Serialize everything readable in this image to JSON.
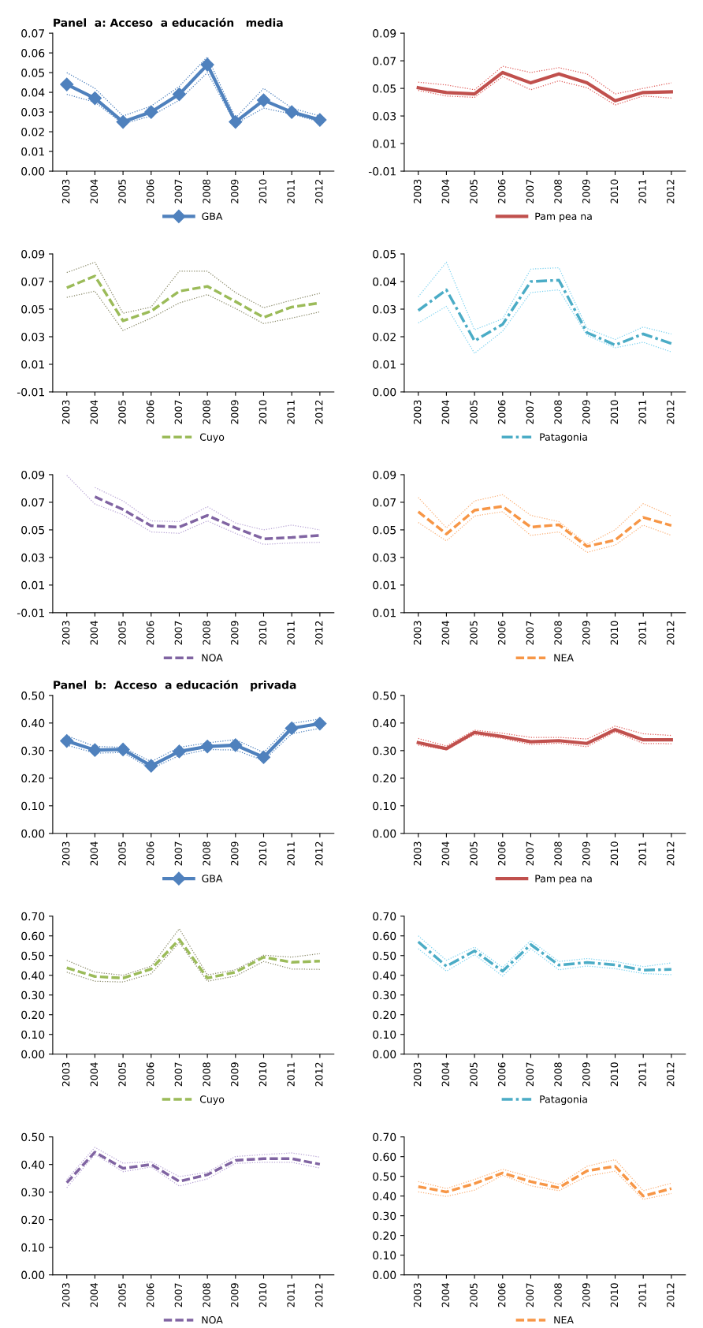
{
  "chart_data": [
    {
      "type": "line",
      "title": "Panel  a: Acceso  a educación   media",
      "categories": [
        "2003",
        "2004",
        "2005",
        "2006",
        "2007",
        "2008",
        "2009",
        "2010",
        "2011",
        "2012"
      ],
      "ylim": [
        0,
        0.07
      ],
      "yticks": [
        {
          "value": 0,
          "label": "0.00"
        },
        0.01,
        0.02,
        0.03,
        0.04,
        0.05,
        0.06,
        0.07
      ],
      "legend": "bottom",
      "marker": "diamond",
      "line_style": "solid",
      "series": [
        {
          "color": "#4f81bd",
          "line_style": "dotted",
          "marker": "none",
          "values": [
            0.05,
            0.042,
            0.028,
            0.033,
            0.043,
            0.058,
            0.027,
            0.042,
            0.032,
            0.028
          ]
        },
        {
          "color": "#4f81bd",
          "line_style": "dotted",
          "marker": "none",
          "values": [
            0.039,
            0.035,
            0.024,
            0.028,
            0.036,
            0.05,
            0.024,
            0.032,
            0.029,
            0.025
          ]
        },
        {
          "name": "GBA",
          "color": "#4f81bd",
          "values": [
            0.044,
            0.037,
            0.025,
            0.03,
            0.039,
            0.054,
            0.025,
            0.036,
            0.03,
            0.026
          ]
        }
      ]
    },
    {
      "type": "line",
      "categories": [
        "2003",
        "2004",
        "2005",
        "2006",
        "2007",
        "2008",
        "2009",
        "2010",
        "2011",
        "2012"
      ],
      "ylim": [
        -0.01,
        0.09
      ],
      "yticks": [
        -0.01,
        0.01,
        0.03,
        0.05,
        0.07,
        0.09
      ],
      "legend": "bottom",
      "line_style": "solid",
      "series": [
        {
          "color": "#e0605d",
          "line_style": "dotted",
          "values": [
            0.0545,
            0.0525,
            0.049,
            0.066,
            0.0615,
            0.065,
            0.0605,
            0.046,
            0.05,
            0.054
          ]
        },
        {
          "color": "#e0605d",
          "line_style": "dotted",
          "values": [
            0.0485,
            0.0445,
            0.0435,
            0.0585,
            0.049,
            0.0555,
            0.0505,
            0.038,
            0.0445,
            0.043
          ]
        },
        {
          "name": "Pam pea na",
          "color": "#c0504d",
          "values": [
            0.0505,
            0.047,
            0.046,
            0.0615,
            0.054,
            0.0605,
            0.054,
            0.041,
            0.047,
            0.0475
          ]
        }
      ]
    },
    {
      "type": "line",
      "categories": [
        "2003",
        "2004",
        "2005",
        "2006",
        "2007",
        "2008",
        "2009",
        "2010",
        "2011",
        "2012"
      ],
      "ylim": [
        -0.01,
        0.09
      ],
      "yticks": [
        -0.01,
        0.01,
        0.03,
        0.05,
        0.07,
        0.09
      ],
      "legend": "bottom",
      "line_style": "dashed",
      "series": [
        {
          "color": "#8a8a6a",
          "line_style": "dotted",
          "values": [
            0.0765,
            0.084,
            0.047,
            0.0515,
            0.0775,
            0.0775,
            0.062,
            0.051,
            0.0565,
            0.0615
          ]
        },
        {
          "color": "#8a8a6a",
          "line_style": "dotted",
          "values": [
            0.0585,
            0.063,
            0.0345,
            0.0435,
            0.0545,
            0.0605,
            0.0505,
            0.0395,
            0.0435,
            0.048
          ]
        },
        {
          "name": "Cuyo",
          "color": "#9bbb59",
          "values": [
            0.0655,
            0.074,
            0.0415,
            0.0485,
            0.063,
            0.0665,
            0.0555,
            0.044,
            0.0515,
            0.0545
          ]
        }
      ]
    },
    {
      "type": "line",
      "categories": [
        "2003",
        "2004",
        "2005",
        "2006",
        "2007",
        "2008",
        "2009",
        "2010",
        "2011",
        "2012"
      ],
      "ylim": [
        0,
        0.05
      ],
      "yticks": [
        {
          "value": 0,
          "label": "0.00"
        },
        0.01,
        0.02,
        0.03,
        0.04,
        0.05
      ],
      "legend": "bottom",
      "line_style": "dashdot",
      "series": [
        {
          "color": "#7fd3f0",
          "line_style": "dotted",
          "values": [
            0.0345,
            0.047,
            0.0225,
            0.0265,
            0.0445,
            0.045,
            0.023,
            0.019,
            0.0235,
            0.021
          ]
        },
        {
          "color": "#7fd3f0",
          "line_style": "dotted",
          "values": [
            0.025,
            0.031,
            0.014,
            0.022,
            0.036,
            0.037,
            0.0205,
            0.016,
            0.018,
            0.0145
          ]
        },
        {
          "name": "Patagonia",
          "color": "#4bacc6",
          "values": [
            0.0295,
            0.037,
            0.0185,
            0.0245,
            0.04,
            0.0405,
            0.0215,
            0.017,
            0.021,
            0.0175
          ]
        }
      ]
    },
    {
      "type": "line",
      "categories": [
        "2003",
        "2004",
        "2005",
        "2006",
        "2007",
        "2008",
        "2009",
        "2010",
        "2011",
        "2012"
      ],
      "ylim": [
        -0.01,
        0.09
      ],
      "yticks": [
        -0.01,
        0.01,
        0.03,
        0.05,
        0.07,
        0.09
      ],
      "legend": "bottom",
      "line_style": "dashed",
      "series": [
        {
          "color": "#b9a6d6",
          "line_style": "dotted",
          "values": [
            null,
            0.0807,
            0.071,
            0.0565,
            0.056,
            0.0668,
            0.055,
            0.05,
            0.0535,
            0.05
          ]
        },
        {
          "color": "#b9a6d6",
          "line_style": "dotted",
          "values": [
            0.0895,
            0.0687,
            0.061,
            0.0485,
            0.0475,
            0.0565,
            0.0475,
            0.0395,
            0.0405,
            0.041
          ]
        },
        {
          "name": "NOA",
          "color": "#8064a2",
          "values": [
            null,
            0.074,
            0.0647,
            0.053,
            0.052,
            0.0605,
            0.0515,
            0.0435,
            0.0445,
            0.046
          ]
        }
      ]
    },
    {
      "type": "line",
      "categories": [
        "2003",
        "2004",
        "2005",
        "2006",
        "2007",
        "2008",
        "2009",
        "2010",
        "2011",
        "2012"
      ],
      "ylim": [
        -0.01,
        0.09
      ],
      "yticks": [
        {
          "value": -0.01,
          "label": "0.01"
        },
        0.01,
        0.03,
        0.05,
        0.07,
        0.09
      ],
      "legend": "bottom",
      "line_style": "dashed",
      "series": [
        {
          "color": "#fbb27a",
          "line_style": "dotted",
          "values": [
            0.0735,
            0.0515,
            0.071,
            0.0755,
            0.0605,
            0.056,
            0.0395,
            0.05,
            0.069,
            0.06
          ]
        },
        {
          "color": "#fbb27a",
          "line_style": "dotted",
          "values": [
            0.0553,
            0.042,
            0.06,
            0.0632,
            0.046,
            0.0485,
            0.0337,
            0.039,
            0.0534,
            0.046
          ]
        },
        {
          "name": "NEA",
          "color": "#f79646",
          "values": [
            0.0632,
            0.047,
            0.0642,
            0.067,
            0.052,
            0.0537,
            0.038,
            0.0426,
            0.059,
            0.0532
          ]
        }
      ]
    },
    {
      "type": "line",
      "title": "Panel  b:  Acceso  a educación   privada",
      "categories": [
        "2003",
        "2004",
        "2005",
        "2006",
        "2007",
        "2008",
        "2009",
        "2010",
        "2011",
        "2012"
      ],
      "ylim": [
        0,
        0.5
      ],
      "yticks": [
        {
          "value": 0,
          "label": "0.00"
        },
        {
          "value": 0.1,
          "label": "0.10"
        },
        {
          "value": 0.2,
          "label": "0.20"
        },
        {
          "value": 0.3,
          "label": "0.30"
        },
        {
          "value": 0.4,
          "label": "0.40"
        },
        {
          "value": 0.5,
          "label": "0.50"
        }
      ],
      "legend": "bottom",
      "marker": "diamond",
      "line_style": "solid",
      "series": [
        {
          "color": "#4f81bd",
          "line_style": "dotted",
          "marker": "none",
          "values": [
            0.354,
            0.315,
            0.312,
            0.26,
            0.312,
            0.328,
            0.34,
            0.293,
            0.398,
            0.415
          ]
        },
        {
          "color": "#4f81bd",
          "line_style": "dotted",
          "marker": "none",
          "values": [
            0.32,
            0.291,
            0.293,
            0.234,
            0.282,
            0.304,
            0.302,
            0.264,
            0.361,
            0.381
          ]
        },
        {
          "name": "GBA",
          "color": "#4f81bd",
          "values": [
            0.335,
            0.302,
            0.304,
            0.245,
            0.297,
            0.315,
            0.32,
            0.276,
            0.381,
            0.398
          ]
        }
      ]
    },
    {
      "type": "line",
      "categories": [
        "2003",
        "2004",
        "2005",
        "2006",
        "2007",
        "2008",
        "2009",
        "2010",
        "2011",
        "2012"
      ],
      "ylim": [
        0,
        0.5
      ],
      "yticks": [
        {
          "value": 0,
          "label": "0.00"
        },
        {
          "value": 0.1,
          "label": "0.10"
        },
        {
          "value": 0.2,
          "label": "0.20"
        },
        {
          "value": 0.3,
          "label": "0.30"
        },
        {
          "value": 0.4,
          "label": "0.40"
        },
        {
          "value": 0.5,
          "label": "0.50"
        }
      ],
      "legend": "bottom",
      "line_style": "solid",
      "series": [
        {
          "color": "#e0605d",
          "line_style": "dotted",
          "values": [
            0.344,
            0.317,
            0.374,
            0.363,
            0.348,
            0.348,
            0.342,
            0.389,
            0.361,
            0.355
          ]
        },
        {
          "color": "#e0605d",
          "line_style": "dotted",
          "values": [
            0.32,
            0.303,
            0.358,
            0.344,
            0.322,
            0.327,
            0.314,
            0.368,
            0.326,
            0.325
          ]
        },
        {
          "name": "Pam pea na",
          "color": "#c0504d",
          "values": [
            0.329,
            0.307,
            0.366,
            0.351,
            0.332,
            0.336,
            0.326,
            0.376,
            0.339,
            0.339
          ]
        }
      ]
    },
    {
      "type": "line",
      "categories": [
        "2003",
        "2004",
        "2005",
        "2006",
        "2007",
        "2008",
        "2009",
        "2010",
        "2011",
        "2012"
      ],
      "ylim": [
        0,
        0.7
      ],
      "yticks": [
        {
          "value": 0,
          "label": "0.00"
        },
        {
          "value": 0.1,
          "label": "0.10"
        },
        {
          "value": 0.2,
          "label": "0.20"
        },
        {
          "value": 0.3,
          "label": "0.30"
        },
        {
          "value": 0.4,
          "label": "0.40"
        },
        {
          "value": 0.5,
          "label": "0.50"
        },
        {
          "value": 0.6,
          "label": "0.60"
        },
        {
          "value": 0.7,
          "label": "0.70"
        }
      ],
      "legend": "bottom",
      "line_style": "dashed",
      "series": [
        {
          "color": "#8a8a6a",
          "line_style": "dotted",
          "values": [
            0.476,
            0.416,
            0.4,
            0.446,
            0.636,
            0.402,
            0.428,
            0.502,
            0.492,
            0.51
          ]
        },
        {
          "color": "#8a8a6a",
          "line_style": "dotted",
          "values": [
            0.416,
            0.37,
            0.366,
            0.408,
            0.566,
            0.37,
            0.396,
            0.47,
            0.432,
            0.43
          ]
        },
        {
          "name": "Cuyo",
          "color": "#9bbb59",
          "values": [
            0.438,
            0.394,
            0.386,
            0.432,
            0.582,
            0.386,
            0.416,
            0.492,
            0.466,
            0.472
          ]
        }
      ]
    },
    {
      "type": "line",
      "categories": [
        "2003",
        "2004",
        "2005",
        "2006",
        "2007",
        "2008",
        "2009",
        "2010",
        "2011",
        "2012"
      ],
      "ylim": [
        0,
        0.7
      ],
      "yticks": [
        {
          "value": 0,
          "label": "0.00"
        },
        {
          "value": 0.1,
          "label": "0.10"
        },
        {
          "value": 0.2,
          "label": "0.20"
        },
        {
          "value": 0.3,
          "label": "0.30"
        },
        {
          "value": 0.4,
          "label": "0.40"
        },
        {
          "value": 0.5,
          "label": "0.50"
        },
        {
          "value": 0.6,
          "label": "0.60"
        },
        {
          "value": 0.7,
          "label": "0.70"
        }
      ],
      "legend": "bottom",
      "line_style": "dashdot",
      "series": [
        {
          "color": "#7fd3f0",
          "line_style": "dotted",
          "values": [
            0.6,
            0.476,
            0.543,
            0.44,
            0.576,
            0.47,
            0.485,
            0.47,
            0.444,
            0.463
          ]
        },
        {
          "color": "#7fd3f0",
          "line_style": "dotted",
          "values": [
            0.535,
            0.421,
            0.505,
            0.396,
            0.535,
            0.428,
            0.447,
            0.434,
            0.409,
            0.403
          ]
        },
        {
          "name": "Patagonia",
          "color": "#4bacc6",
          "values": [
            0.57,
            0.446,
            0.524,
            0.421,
            0.556,
            0.452,
            0.465,
            0.453,
            0.426,
            0.43
          ]
        }
      ]
    },
    {
      "type": "line",
      "categories": [
        "2003",
        "2004",
        "2005",
        "2006",
        "2007",
        "2008",
        "2009",
        "2010",
        "2011",
        "2012"
      ],
      "ylim": [
        0,
        0.5
      ],
      "yticks": [
        {
          "value": 0,
          "label": "0.00"
        },
        {
          "value": 0.1,
          "label": "0.10"
        },
        {
          "value": 0.2,
          "label": "0.20"
        },
        {
          "value": 0.3,
          "label": "0.30"
        },
        {
          "value": 0.4,
          "label": "0.40"
        },
        {
          "value": 0.5,
          "label": "0.50"
        }
      ],
      "legend": "bottom",
      "line_style": "dashed",
      "series": [
        {
          "color": "#b9a6d6",
          "line_style": "dotted",
          "values": [
            0.346,
            0.462,
            0.405,
            0.41,
            0.356,
            0.372,
            0.429,
            0.436,
            0.442,
            0.427
          ]
        },
        {
          "color": "#b9a6d6",
          "line_style": "dotted",
          "values": [
            0.316,
            0.437,
            0.374,
            0.391,
            0.322,
            0.348,
            0.404,
            0.408,
            0.408,
            0.387
          ]
        },
        {
          "name": "NOA",
          "color": "#8064a2",
          "values": [
            0.334,
            0.445,
            0.386,
            0.4,
            0.339,
            0.363,
            0.415,
            0.421,
            0.421,
            0.401
          ]
        }
      ]
    },
    {
      "type": "line",
      "categories": [
        "2003",
        "2004",
        "2005",
        "2006",
        "2007",
        "2008",
        "2009",
        "2010",
        "2011",
        "2012"
      ],
      "ylim": [
        0,
        0.7
      ],
      "yticks": [
        {
          "value": 0,
          "label": "0.00"
        },
        {
          "value": 0.1,
          "label": "0.10"
        },
        {
          "value": 0.2,
          "label": "0.20"
        },
        {
          "value": 0.3,
          "label": "0.30"
        },
        {
          "value": 0.4,
          "label": "0.40"
        },
        {
          "value": 0.5,
          "label": "0.50"
        },
        {
          "value": 0.6,
          "label": "0.60"
        },
        {
          "value": 0.7,
          "label": "0.70"
        }
      ],
      "legend": "bottom",
      "line_style": "dashed",
      "series": [
        {
          "color": "#fbb27a",
          "line_style": "dotted",
          "values": [
            0.473,
            0.438,
            0.484,
            0.536,
            0.497,
            0.459,
            0.551,
            0.585,
            0.427,
            0.465
          ]
        },
        {
          "color": "#fbb27a",
          "line_style": "dotted",
          "values": [
            0.421,
            0.398,
            0.43,
            0.505,
            0.452,
            0.427,
            0.501,
            0.526,
            0.383,
            0.413
          ]
        },
        {
          "name": "NEA",
          "color": "#f79646",
          "values": [
            0.448,
            0.421,
            0.463,
            0.517,
            0.473,
            0.442,
            0.528,
            0.551,
            0.4,
            0.438
          ]
        }
      ]
    }
  ]
}
